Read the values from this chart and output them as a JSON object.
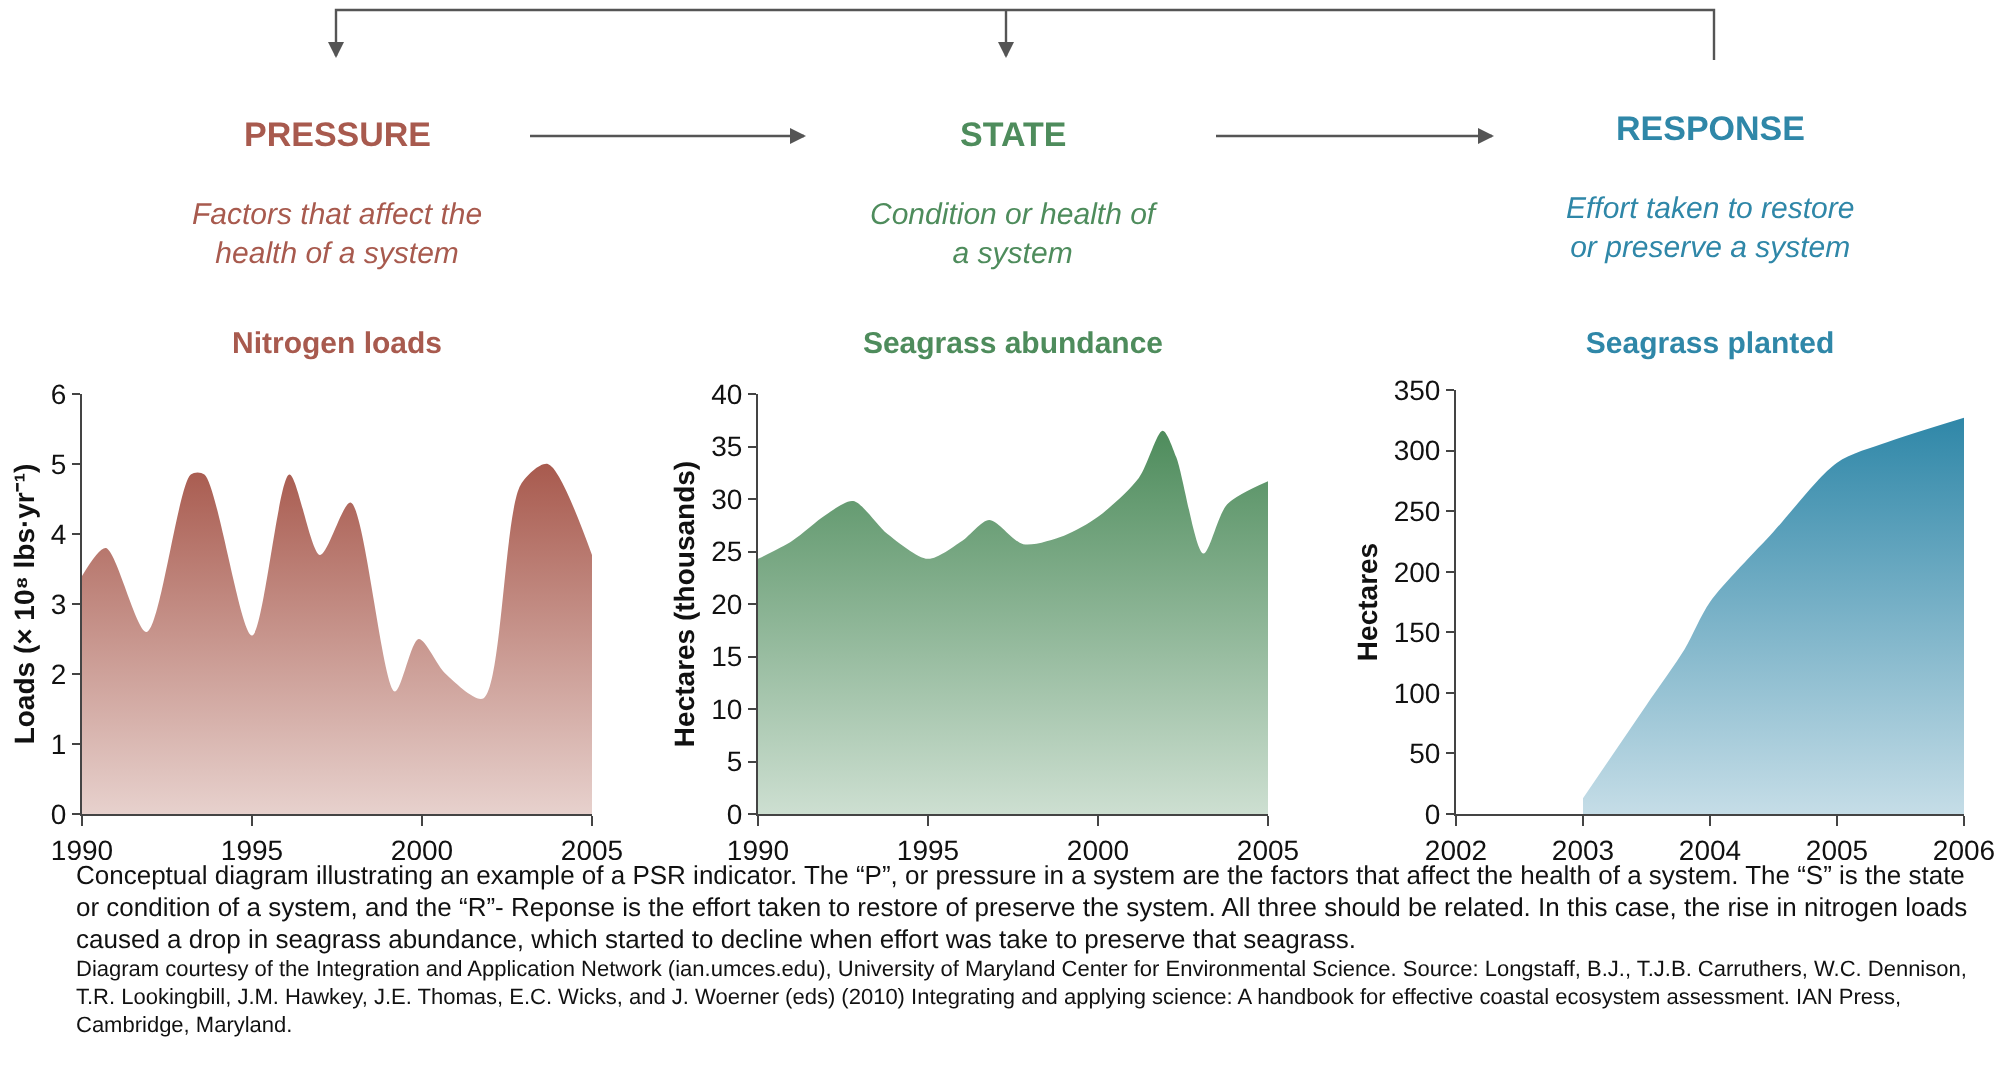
{
  "chart_data": [
    {
      "type": "area",
      "title": "Nitrogen loads",
      "annotations": [
        "PRESSURE",
        "Factors that affect the health of a system"
      ],
      "ylabel": "Loads (× 10⁸ lbs·yr⁻¹)",
      "x": [
        1990,
        1990.7,
        1991.9,
        1993.2,
        1993.6,
        1995,
        1996.1,
        1997,
        1997.9,
        1999.2,
        1999.9,
        2000.7,
        2001.8,
        2002.9,
        2003.7,
        2005
      ],
      "series": [
        {
          "color": "#a85a4e",
          "values": [
            3.4,
            3.8,
            2.6,
            4.85,
            4.85,
            2.55,
            4.85,
            3.7,
            4.45,
            1.75,
            2.5,
            2.0,
            1.65,
            4.7,
            5.0,
            3.7
          ]
        }
      ],
      "xlim": [
        1990,
        2005
      ],
      "xticks": [
        1990,
        1995,
        2000,
        2005
      ],
      "ylim": [
        0,
        6
      ],
      "yticks": [
        0,
        1,
        2,
        3,
        4,
        5,
        6
      ]
    },
    {
      "type": "area",
      "title": "Seagrass abundance",
      "annotations": [
        "STATE",
        "Condition or health of a system"
      ],
      "ylabel": "Hectares (thousands)",
      "x": [
        1990,
        1991,
        1992,
        1992.8,
        1993.8,
        1995,
        1996,
        1996.8,
        1997.8,
        1999,
        2000,
        2001.2,
        2001.9,
        2002.3,
        2003.1,
        2003.8,
        2005
      ],
      "series": [
        {
          "color": "#4e8c5c",
          "values": [
            24.3,
            26,
            28.5,
            29.8,
            26.7,
            24.3,
            26,
            28,
            25.7,
            26.5,
            28.3,
            32,
            36.5,
            34,
            24.8,
            29.5,
            31.7
          ]
        }
      ],
      "xlim": [
        1990,
        2005
      ],
      "xticks": [
        1990,
        1995,
        2000,
        2005
      ],
      "ylim": [
        0,
        40
      ],
      "yticks": [
        0,
        5,
        10,
        15,
        20,
        25,
        30,
        35,
        40
      ]
    },
    {
      "type": "area",
      "title": "Seagrass planted",
      "annotations": [
        "RESPONSE",
        "Effort taken to restore or preserve a system"
      ],
      "ylabel": "Hectares",
      "x": [
        2003,
        2003.5,
        2003.8,
        2004,
        2004.5,
        2005,
        2005.4,
        2006
      ],
      "series": [
        {
          "color": "#2f87a8",
          "values": [
            13,
            90,
            136,
            175,
            233,
            290,
            307,
            327
          ]
        }
      ],
      "xlim": [
        2002,
        2006
      ],
      "xticks": [
        2002,
        2003,
        2004,
        2005,
        2006
      ],
      "ylim": [
        0,
        350
      ],
      "yticks": [
        0,
        50,
        100,
        150,
        200,
        250,
        300,
        350
      ]
    },
    {
      "type": "other",
      "annotations": [
        "Conceptual diagram illustrating an example of a PSR indicator. The “P”, or pressure in a system are the factors that affect the health of a system. The “S” is the state or condition of a system, and the “R”- Reponse is the effort taken to restore of preserve the system. All three should be related. In this case, the rise in nitrogen loads caused a drop in seagrass abundance, which started to decline when effort was take to preserve that seagrass.",
        "Diagram courtesy of the Integration and Application Network (ian.umces.edu), University of Maryland Center for Environmental Science. Source: Longstaff, B.J., T.J.B. Carruthers, W.C. Dennison, T.R. Lookingbill, J.M. Hawkey, J.E. Thomas, E.C. Wicks, and J. Woerner (eds) (2010) Integrating and applying science: A handbook for effective coastal ecosystem assessment. IAN Press, Cambridge, Maryland."
      ]
    }
  ]
}
